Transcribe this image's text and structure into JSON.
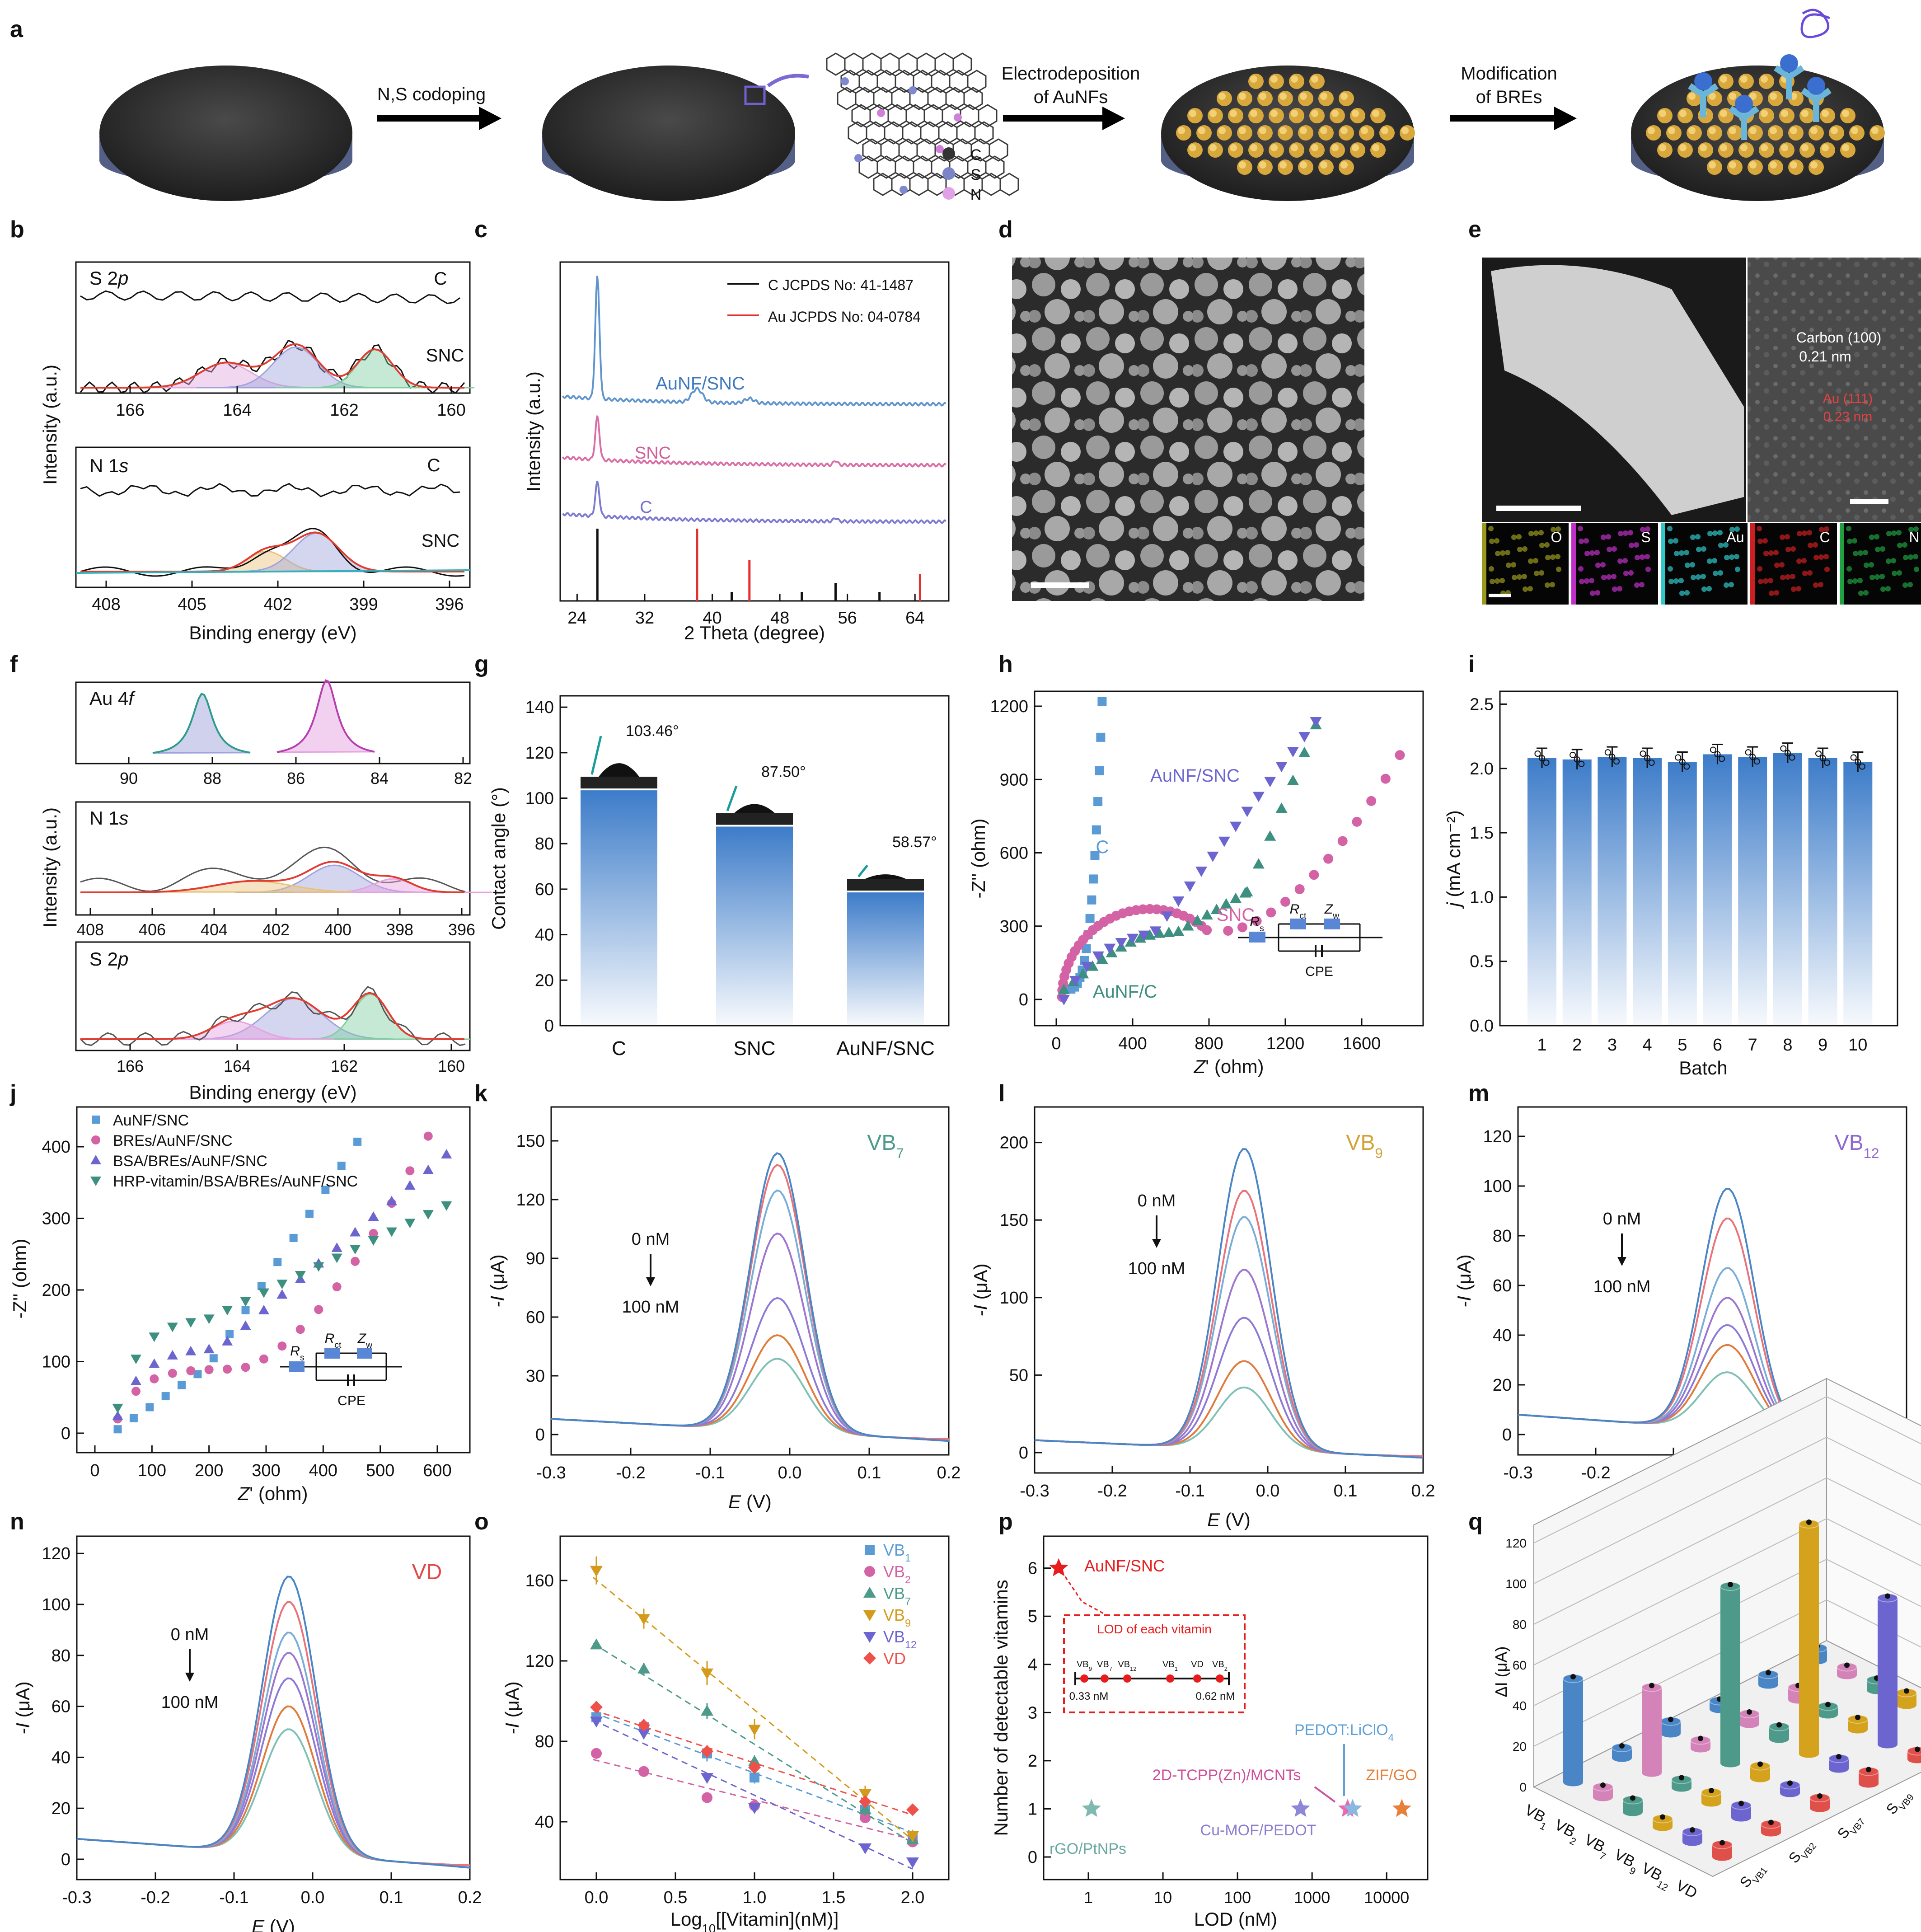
{
  "panel_labels": [
    "a",
    "b",
    "c",
    "d",
    "e",
    "f",
    "g",
    "h",
    "i",
    "j",
    "k",
    "l",
    "m",
    "n",
    "o",
    "p",
    "q"
  ],
  "panel_a": {
    "steps": [
      "N,S codoping",
      "Electrodeposition",
      "of AuNFs",
      "Modification",
      "of BREs"
    ],
    "legend": [
      "C",
      "S",
      "N"
    ]
  },
  "panel_b": {
    "xlabel": "Binding energy (eV)",
    "ylabel": "Intensity (a.u.)",
    "top": {
      "label_main": "S 2",
      "label_orb": "p",
      "series": [
        "C",
        "SNC"
      ],
      "ticks": [
        "166",
        "164",
        "162",
        "160"
      ]
    },
    "bottom": {
      "label_main": "N 1",
      "label_orb": "s",
      "series": [
        "C",
        "SNC"
      ],
      "ticks": [
        "408",
        "405",
        "402",
        "399",
        "396"
      ]
    }
  },
  "panel_c": {
    "xlabel": "2 Theta (degree)",
    "ylabel": "Intensity (a.u.)",
    "legend": [
      "C JCPDS No: 41-1487",
      "Au JCPDS No: 04-0784"
    ],
    "traces": [
      "AuNF/SNC",
      "SNC",
      "C"
    ],
    "ticks": [
      "24",
      "32",
      "40",
      "48",
      "56",
      "64"
    ]
  },
  "panel_e": {
    "hrtem": [
      "Carbon (100)",
      "0.21 nm",
      "Au (111)",
      "0.23 nm"
    ],
    "maps": [
      "O",
      "S",
      "Au",
      "C",
      "N"
    ]
  },
  "panel_f": {
    "xlabel": "Binding energy (eV)",
    "ylabel": "Intensity (a.u.)",
    "au": {
      "label_main": "Au 4",
      "label_orb": "f",
      "ticks": [
        "90",
        "88",
        "86",
        "84",
        "82"
      ]
    },
    "n": {
      "label_main": "N 1",
      "label_orb": "s",
      "ticks": [
        "408",
        "406",
        "404",
        "402",
        "400",
        "398",
        "396"
      ]
    },
    "s": {
      "label_main": "S 2",
      "label_orb": "p",
      "ticks": [
        "166",
        "164",
        "162",
        "160"
      ]
    }
  },
  "panel_h": {
    "xlabel_main": "Z",
    "xlabel_rest": "' (ohm)",
    "ylabel": "-Z'' (ohm)",
    "series": [
      "C",
      "AuNF/SNC",
      "SNC",
      "AuNF/C"
    ],
    "circuit": [
      "R",
      "s",
      "R",
      "ct",
      "Z",
      "w",
      "CPE"
    ],
    "xticks": [
      "0",
      "400",
      "800",
      "1200",
      "1600"
    ],
    "yticks": [
      "0",
      "300",
      "600",
      "900",
      "1200"
    ]
  },
  "panel_j": {
    "xlabel_main": "Z",
    "xlabel_rest": "' (ohm)",
    "ylabel": "-Z'' (ohm)",
    "legend": [
      "AuNF/SNC",
      "BREs/AuNF/SNC",
      "BSA/BREs/AuNF/SNC",
      "HRP-vitamin/BSA/BREs/AuNF/SNC"
    ],
    "circuit": [
      "R",
      "s",
      "R",
      "ct",
      "Z",
      "w",
      "CPE"
    ],
    "xticks": [
      "0",
      "100",
      "200",
      "300",
      "400",
      "500",
      "600"
    ],
    "yticks": [
      "0",
      "100",
      "200",
      "300",
      "400"
    ]
  },
  "dpv_common": {
    "xlabel_main": "E",
    "xlabel_rest": " (V)",
    "ylabel_main": "-I",
    "ylabel_rest": " (μA)",
    "from": "0 nM",
    "to": "100 nM",
    "xticks": [
      "-0.3",
      "-0.2",
      "-0.1",
      "0.0",
      "0.1",
      "0.2"
    ]
  },
  "panel_k": {
    "title": "VB",
    "sub": "7",
    "yticks": [
      "0",
      "30",
      "60",
      "90",
      "120",
      "150"
    ]
  },
  "panel_l": {
    "title": "VB",
    "sub": "9",
    "yticks": [
      "0",
      "50",
      "100",
      "150",
      "200"
    ]
  },
  "panel_m": {
    "title": "VB",
    "sub": "12",
    "yticks": [
      "0",
      "20",
      "40",
      "60",
      "80",
      "100",
      "120"
    ]
  },
  "panel_n": {
    "title": "VD",
    "yticks": [
      "0",
      "20",
      "40",
      "60",
      "80",
      "100",
      "120"
    ]
  },
  "panel_o": {
    "xlabel": "Log",
    "xlabel_sub": "10",
    "xlabel_rest": "[[Vitamin](nM)]",
    "ylabel_main": "-I",
    "ylabel_rest": " (μA)",
    "legend": [
      {
        "b": "VB",
        "s": "1"
      },
      {
        "b": "VB",
        "s": "2"
      },
      {
        "b": "VB",
        "s": "7"
      },
      {
        "b": "VB",
        "s": "9"
      },
      {
        "b": "VB",
        "s": "12"
      },
      {
        "b": "VD",
        "s": ""
      }
    ],
    "xticks": [
      "0.0",
      "0.5",
      "1.0",
      "1.5",
      "2.0"
    ],
    "yticks": [
      "40",
      "80",
      "120",
      "160"
    ]
  },
  "panel_p": {
    "xlabel": "LOD (nM)",
    "ylabel": "Number of detectable vitamins",
    "main": "AuNF/SNC",
    "inset_title": "LOD of each vitamin",
    "inset_items": [
      {
        "b": "VB",
        "s": "9"
      },
      {
        "b": "VB",
        "s": "7"
      },
      {
        "b": "VB",
        "s": "12"
      },
      {
        "b": "VB",
        "s": "1"
      },
      {
        "b": "VD",
        "s": ""
      },
      {
        "b": "VB",
        "s": "2"
      }
    ],
    "inset_range": [
      "0.33 nM",
      "0.62 nM"
    ],
    "refs": [
      "rGO/PtNPs",
      "Cu-MOF/PEDOT",
      "2D-TCPP(Zn)/MCNTs",
      "ZIF/GO"
    ],
    "ref_pedot": "PEDOT:LiClO",
    "ref_pedot_sub": "4",
    "xticks": [
      "1",
      "10",
      "100",
      "1000",
      "10000"
    ],
    "yticks": [
      "0",
      "1",
      "2",
      "3",
      "4",
      "5",
      "6"
    ]
  },
  "panel_q": {
    "ylabel": "ΔI (μA)",
    "xcats": [
      {
        "b": "VB",
        "s": "1"
      },
      {
        "b": "VB",
        "s": "2"
      },
      {
        "b": "VB",
        "s": "7"
      },
      {
        "b": "VB",
        "s": "9"
      },
      {
        "b": "VB",
        "s": "12"
      },
      {
        "b": "VD",
        "s": ""
      }
    ],
    "ycats": [
      {
        "b": "S",
        "s": "VB",
        "ss": "1"
      },
      {
        "b": "S",
        "s": "VB",
        "ss": "2"
      },
      {
        "b": "S",
        "s": "VB",
        "ss": "7"
      },
      {
        "b": "S",
        "s": "VB",
        "ss": "9"
      },
      {
        "b": "S",
        "s": "VB",
        "ss": "12"
      },
      {
        "b": "S",
        "s": "VD",
        "ss": ""
      }
    ],
    "zticks": [
      "0",
      "20",
      "40",
      "60",
      "80",
      "100",
      "120"
    ]
  },
  "chart_data": [
    {
      "panel": "g",
      "type": "bar",
      "categories": [
        "C",
        "SNC",
        "AuNF/SNC"
      ],
      "values": [
        103.46,
        87.5,
        58.57
      ],
      "data_labels": [
        "103.46°",
        "87.50°",
        "58.57°"
      ],
      "ylabel": "Contact angle (°)",
      "ylim": [
        0,
        145
      ],
      "yticks": [
        "0",
        "20",
        "40",
        "60",
        "80",
        "100",
        "120",
        "140"
      ],
      "color": "#3d7cc9"
    },
    {
      "panel": "i",
      "type": "bar",
      "categories": [
        "1",
        "2",
        "3",
        "4",
        "5",
        "6",
        "7",
        "8",
        "9",
        "10"
      ],
      "values": [
        2.08,
        2.07,
        2.09,
        2.08,
        2.05,
        2.11,
        2.09,
        2.12,
        2.08,
        2.05
      ],
      "xlabel": "Batch",
      "ylabel_main": "j",
      "ylabel_rest": " (mA cm⁻²)",
      "ylim": [
        0,
        2.6
      ],
      "yticks": [
        "0.0",
        "0.5",
        "1.0",
        "1.5",
        "2.0",
        "2.5"
      ],
      "color": "#3d7cc9"
    },
    {
      "panel": "k",
      "type": "line",
      "peak_potential": -0.015,
      "peaks": [
        37,
        49,
        68,
        101,
        123,
        136,
        142
      ]
    },
    {
      "panel": "l",
      "type": "line",
      "peak_potential": -0.03,
      "peaks": [
        40,
        57,
        85,
        116,
        150,
        167,
        194
      ]
    },
    {
      "panel": "m",
      "type": "line",
      "peak_potential": -0.03,
      "peaks": [
        23,
        34,
        42,
        53,
        65,
        85,
        97
      ]
    },
    {
      "panel": "n",
      "type": "line",
      "peak_potential": -0.03,
      "peaks": [
        49,
        58,
        69,
        79,
        87,
        99,
        109
      ]
    },
    {
      "panel": "o",
      "type": "scatter",
      "x": [
        0,
        0.3,
        0.7,
        1.0,
        1.7,
        2.0
      ],
      "series": [
        {
          "name": "VB1",
          "values": [
            92,
            87,
            74,
            62,
            46,
            33
          ],
          "errors": [
            3,
            3,
            4,
            3,
            3,
            3
          ]
        },
        {
          "name": "VB2",
          "values": [
            74,
            65,
            52,
            48,
            42,
            30
          ],
          "errors": [
            2,
            2,
            2,
            2,
            2,
            2
          ]
        },
        {
          "name": "VB7",
          "values": [
            128,
            116,
            95,
            70,
            46,
            31
          ],
          "errors": [
            2,
            3,
            4,
            3,
            3,
            2
          ]
        },
        {
          "name": "VB9",
          "values": [
            165,
            141,
            114,
            86,
            54,
            33
          ],
          "errors": [
            7,
            5,
            6,
            5,
            4,
            3
          ]
        },
        {
          "name": "VB12",
          "values": [
            90,
            84,
            62,
            47,
            27,
            20
          ],
          "errors": [
            2,
            2,
            2,
            2,
            2,
            2
          ]
        },
        {
          "name": "VD",
          "values": [
            97,
            88,
            75,
            67,
            50,
            46
          ],
          "errors": [
            3,
            3,
            3,
            3,
            3,
            2
          ]
        }
      ]
    },
    {
      "panel": "p",
      "type": "scatter",
      "x_scale": "log",
      "points": [
        {
          "name": "AuNF/SNC",
          "x": 0.4,
          "y": 6
        },
        {
          "name": "rGO/PtNPs",
          "x": 1.1,
          "y": 1
        },
        {
          "name": "Cu-MOF/PEDOT",
          "x": 700,
          "y": 1
        },
        {
          "name": "2D-TCPP(Zn)/MCNTs",
          "x": 3000,
          "y": 1
        },
        {
          "name": "PEDOT:LiClO4",
          "x": 3500,
          "y": 1
        },
        {
          "name": "ZIF/GO",
          "x": 16000,
          "y": 1
        }
      ]
    },
    {
      "panel": "q",
      "type": "bar3d",
      "diagonal": [
        51,
        42,
        87,
        113,
        72,
        58
      ],
      "offdiag_level": 4
    }
  ]
}
